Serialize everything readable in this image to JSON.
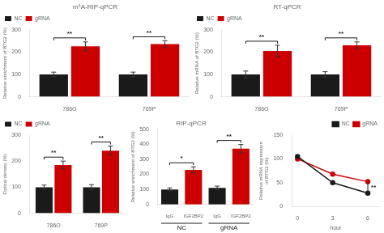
{
  "chart_data": [
    {
      "type": "bar",
      "title": "m⁶A-RIP-qPCR",
      "y_label": "Relative enrichment of BTG2 (%)",
      "categories": [
        "786O",
        "769P"
      ],
      "series": [
        {
          "name": "NC",
          "color": "#1a1a1a",
          "values": [
            100,
            100
          ],
          "error": [
            10,
            10
          ]
        },
        {
          "name": "gRNA",
          "color": "#cc0000",
          "values": [
            225,
            235
          ],
          "error": [
            20,
            15
          ]
        }
      ],
      "ylim": [
        0,
        300
      ],
      "yticks": [
        0,
        100,
        200,
        300
      ],
      "grid": false,
      "legend": "upper left",
      "annotations": [
        {
          "text": "**",
          "category": "786O"
        },
        {
          "text": "**",
          "category": "769P"
        }
      ]
    },
    {
      "type": "bar",
      "title": "RT-qPCR",
      "y_label": "Relative mRNA of BTG2 (%)",
      "categories": [
        "786O",
        "769P"
      ],
      "series": [
        {
          "name": "NC",
          "color": "#1a1a1a",
          "values": [
            100,
            100
          ],
          "error": [
            15,
            12
          ]
        },
        {
          "name": "gRNA",
          "color": "#cc0000",
          "values": [
            205,
            230
          ],
          "error": [
            25,
            15
          ]
        }
      ],
      "ylim": [
        0,
        300
      ],
      "yticks": [
        0,
        100,
        200,
        300
      ],
      "grid": false,
      "legend": "upper left",
      "annotations": [
        {
          "text": "**",
          "category": "786O"
        },
        {
          "text": "**",
          "category": "769P"
        }
      ]
    },
    {
      "type": "bar",
      "y_label": "Optical density (%)",
      "categories": [
        "786O",
        "769P"
      ],
      "series": [
        {
          "name": "NC",
          "color": "#1a1a1a",
          "values": [
            100,
            100
          ],
          "error": [
            8,
            10
          ]
        },
        {
          "name": "gRNA",
          "color": "#cc0000",
          "values": [
            185,
            240
          ],
          "error": [
            15,
            18
          ]
        }
      ],
      "ylim": [
        0,
        300
      ],
      "yticks": [
        0,
        100,
        200,
        300
      ],
      "grid": false,
      "legend": "upper left",
      "annotations": [
        {
          "text": "**",
          "category": "786O"
        },
        {
          "text": "**",
          "category": "769P"
        }
      ]
    },
    {
      "type": "bar",
      "title": "RIP-qPCR",
      "y_label": "Relative enrichment of BTG2 (%)",
      "categories": [
        "IgG",
        "IGF2BP2",
        "IgG",
        "IGF2BP2"
      ],
      "values": [
        100,
        230,
        110,
        370
      ],
      "error": [
        10,
        20,
        12,
        28
      ],
      "colors": [
        "#1a1a1a",
        "#cc0000",
        "#1a1a1a",
        "#cc0000"
      ],
      "groups": [
        "NC",
        "gRNA"
      ],
      "ylim": [
        0,
        500
      ],
      "yticks": [
        0,
        100,
        200,
        300,
        400,
        500
      ],
      "grid": false,
      "annotations": [
        {
          "text": "*",
          "group": "NC"
        },
        {
          "text": "**",
          "group": "gRNA"
        }
      ]
    },
    {
      "type": "line",
      "x_label": "hour",
      "y_label": "Relative mRNA expression\nof BTG2 (%)",
      "series": [
        {
          "name": "NC",
          "color": "#1a1a1a",
          "x": [
            0,
            3,
            6
          ],
          "values": [
            105,
            50,
            28
          ]
        },
        {
          "name": "gRNA",
          "color": "#cc0000",
          "x": [
            0,
            3,
            6
          ],
          "values": [
            100,
            68,
            52
          ]
        }
      ],
      "marker": "circle",
      "xlim": [
        -0.5,
        7.0
      ],
      "xticks": [
        0,
        3,
        6
      ],
      "ylim": [
        0,
        150
      ],
      "yticks": [
        0,
        50,
        100,
        150
      ],
      "grid": false,
      "legend": "upper right",
      "annotations": [
        {
          "text": "**",
          "x": 6
        }
      ]
    }
  ]
}
